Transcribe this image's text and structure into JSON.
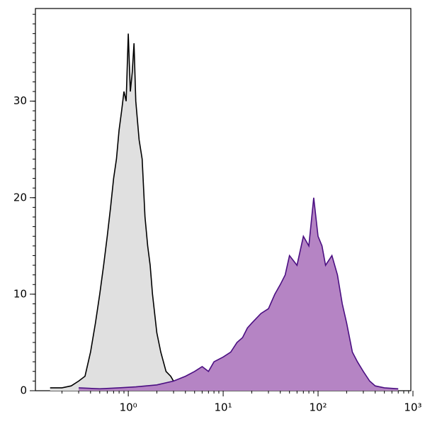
{
  "chart_data": {
    "type": "area",
    "xscale": "log",
    "xlim": [
      0.105,
      950
    ],
    "ylim": [
      0,
      39.6
    ],
    "xticks": [
      {
        "value": 1,
        "label": "10⁰"
      },
      {
        "value": 10,
        "label": "10¹"
      },
      {
        "value": 100,
        "label": "10²"
      },
      {
        "value": 1000,
        "label": "10³"
      }
    ],
    "yticks": [
      0,
      10,
      20,
      30
    ],
    "minor_ticks": true,
    "series": [
      {
        "color": "#000000",
        "fill": "#e0e0e0",
        "x": [
          0.15,
          0.2,
          0.25,
          0.3,
          0.35,
          0.4,
          0.45,
          0.5,
          0.55,
          0.6,
          0.65,
          0.7,
          0.75,
          0.8,
          0.85,
          0.9,
          0.95,
          1.0,
          1.05,
          1.1,
          1.15,
          1.2,
          1.3,
          1.4,
          1.5,
          1.6,
          1.7,
          1.8,
          2.0,
          2.2,
          2.5,
          2.8,
          3.2
        ],
        "values": [
          0.3,
          0.3,
          0.5,
          1,
          1.5,
          4,
          7,
          10,
          13,
          16,
          19,
          22,
          24,
          27,
          29,
          31,
          30,
          37,
          31,
          33,
          36,
          30,
          26,
          24,
          18,
          15,
          13,
          10,
          6,
          4,
          2,
          1.5,
          0.5
        ]
      },
      {
        "color": "#4b0f82",
        "fill": "#b584c4",
        "x": [
          0.3,
          0.5,
          0.8,
          1.2,
          2,
          3,
          4,
          5,
          6,
          7,
          8,
          10,
          12,
          14,
          16,
          18,
          20,
          25,
          30,
          35,
          40,
          45,
          50,
          60,
          70,
          80,
          90,
          100,
          110,
          120,
          140,
          160,
          180,
          200,
          230,
          260,
          300,
          350,
          400,
          500,
          700
        ],
        "values": [
          0.3,
          0.2,
          0.3,
          0.4,
          0.6,
          1,
          1.5,
          2,
          2.5,
          2,
          3,
          3.5,
          4,
          5,
          5.5,
          6.5,
          7,
          8,
          8.5,
          10,
          11,
          12,
          14,
          13,
          16,
          15,
          20,
          16,
          15,
          13,
          14,
          12,
          9,
          7,
          4,
          3,
          2,
          1,
          0.5,
          0.3,
          0.2
        ]
      }
    ]
  }
}
